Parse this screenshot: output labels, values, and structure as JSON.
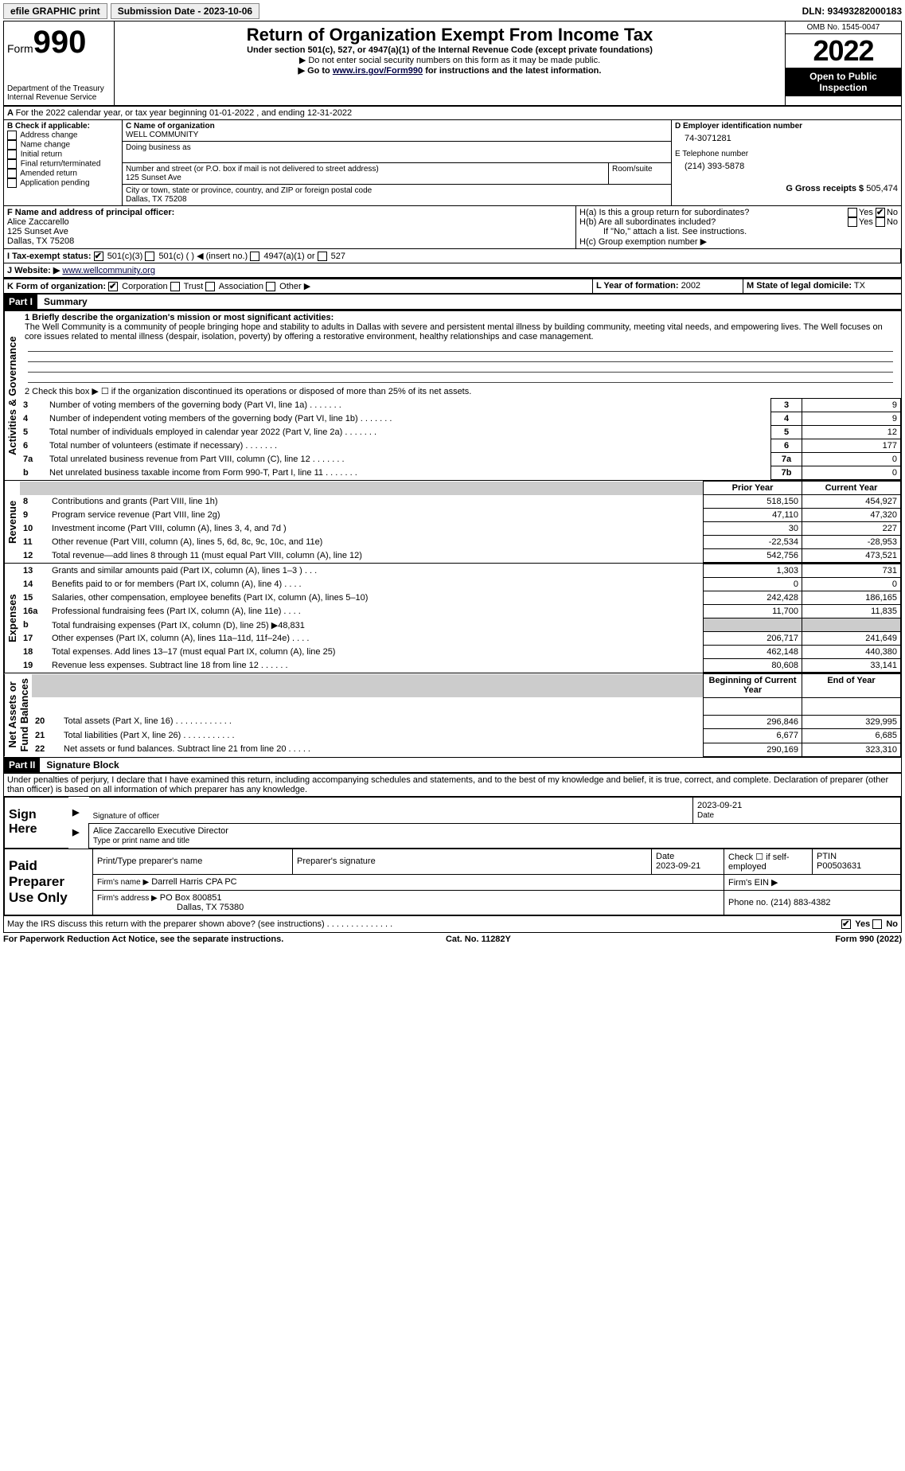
{
  "topbar": {
    "efile": "efile GRAPHIC print",
    "subdate_label": "Submission Date - 2023-10-06",
    "dln": "DLN: 93493282000183"
  },
  "header": {
    "form_word": "Form",
    "form_num": "990",
    "dept": "Department of the Treasury\nInternal Revenue Service",
    "title": "Return of Organization Exempt From Income Tax",
    "sub1": "Under section 501(c), 527, or 4947(a)(1) of the Internal Revenue Code (except private foundations)",
    "sub2": "▶ Do not enter social security numbers on this form as it may be made public.",
    "sub3_pre": "▶ Go to ",
    "sub3_link": "www.irs.gov/Form990",
    "sub3_post": " for instructions and the latest information.",
    "omb": "OMB No. 1545-0047",
    "year": "2022",
    "open": "Open to Public Inspection"
  },
  "lineA": "For the 2022 calendar year, or tax year beginning 01-01-2022    , and ending 12-31-2022",
  "blockB": {
    "label": "B Check if applicable:",
    "items": [
      "Address change",
      "Name change",
      "Initial return",
      "Final return/terminated",
      "Amended return",
      "Application pending"
    ]
  },
  "blockC": {
    "name_label": "C Name of organization",
    "name": "WELL COMMUNITY",
    "dba_label": "Doing business as",
    "street_label": "Number and street (or P.O. box if mail is not delivered to street address)",
    "room_label": "Room/suite",
    "street": "125 Sunset Ave",
    "city_label": "City or town, state or province, country, and ZIP or foreign postal code",
    "city": "Dallas, TX  75208"
  },
  "blockDE": {
    "d_label": "D Employer identification number",
    "ein": "74-3071281",
    "e_label": "E Telephone number",
    "phone": "(214) 393-5878",
    "g_label": "G Gross receipts $",
    "g_val": "505,474"
  },
  "blockF": {
    "label": "F  Name and address of principal officer:",
    "name": "Alice Zaccarello",
    "street": "125 Sunset Ave",
    "city": "Dallas, TX  75208"
  },
  "blockH": {
    "a": "H(a)  Is this a group return for subordinates?",
    "b": "H(b)  Are all subordinates included?",
    "b_note": "If \"No,\" attach a list. See instructions.",
    "c": "H(c)  Group exemption number ▶",
    "yes": "Yes",
    "no": "No"
  },
  "lineI": {
    "label": "I   Tax-exempt status:",
    "o1": "501(c)(3)",
    "o2": "501(c) (   ) ◀ (insert no.)",
    "o3": "4947(a)(1) or",
    "o4": "527"
  },
  "lineJ": {
    "label": "J   Website: ▶",
    "val": "www.wellcommunity.org"
  },
  "lineK": {
    "label": "K Form of organization:",
    "o1": "Corporation",
    "o2": "Trust",
    "o3": "Association",
    "o4": "Other ▶"
  },
  "lineL": {
    "label": "L Year of formation:",
    "val": "2002"
  },
  "lineM": {
    "label": "M State of legal domicile:",
    "val": "TX"
  },
  "part1": {
    "hdr": "Part I",
    "title": "Summary"
  },
  "summary": {
    "l1_label": "1  Briefly describe the organization's mission or most significant activities:",
    "l1_text": "The Well Community is a community of people bringing hope and stability to adults in Dallas with severe and persistent mental illness by building community, meeting vital needs, and empowering lives. The Well focuses on core issues related to mental illness (despair, isolation, poverty) by offering a restorative environment, healthy relationships and case management.",
    "l2": "2   Check this box ▶ ☐  if the organization discontinued its operations or disposed of more than 25% of its net assets.",
    "rows_ag": [
      {
        "n": "3",
        "t": "Number of voting members of the governing body (Part VI, line 1a)",
        "box": "3",
        "v": "9"
      },
      {
        "n": "4",
        "t": "Number of independent voting members of the governing body (Part VI, line 1b)",
        "box": "4",
        "v": "9"
      },
      {
        "n": "5",
        "t": "Total number of individuals employed in calendar year 2022 (Part V, line 2a)",
        "box": "5",
        "v": "12"
      },
      {
        "n": "6",
        "t": "Total number of volunteers (estimate if necessary)",
        "box": "6",
        "v": "177"
      },
      {
        "n": "7a",
        "t": "Total unrelated business revenue from Part VIII, column (C), line 12",
        "box": "7a",
        "v": "0"
      },
      {
        "n": "b",
        "t": "Net unrelated business taxable income from Form 990-T, Part I, line 11",
        "box": "7b",
        "v": "0"
      }
    ],
    "prior": "Prior Year",
    "current": "Current Year",
    "revenue": [
      {
        "n": "8",
        "t": "Contributions and grants (Part VIII, line 1h)",
        "p": "518,150",
        "c": "454,927"
      },
      {
        "n": "9",
        "t": "Program service revenue (Part VIII, line 2g)",
        "p": "47,110",
        "c": "47,320"
      },
      {
        "n": "10",
        "t": "Investment income (Part VIII, column (A), lines 3, 4, and 7d )",
        "p": "30",
        "c": "227"
      },
      {
        "n": "11",
        "t": "Other revenue (Part VIII, column (A), lines 5, 6d, 8c, 9c, 10c, and 11e)",
        "p": "-22,534",
        "c": "-28,953"
      },
      {
        "n": "12",
        "t": "Total revenue—add lines 8 through 11 (must equal Part VIII, column (A), line 12)",
        "p": "542,756",
        "c": "473,521"
      }
    ],
    "expenses": [
      {
        "n": "13",
        "t": "Grants and similar amounts paid (Part IX, column (A), lines 1–3 )   .   .   .",
        "p": "1,303",
        "c": "731"
      },
      {
        "n": "14",
        "t": "Benefits paid to or for members (Part IX, column (A), line 4)  .   .   .   .",
        "p": "0",
        "c": "0"
      },
      {
        "n": "15",
        "t": "Salaries, other compensation, employee benefits (Part IX, column (A), lines 5–10)",
        "p": "242,428",
        "c": "186,165"
      },
      {
        "n": "16a",
        "t": "Professional fundraising fees (Part IX, column (A), line 11e)  .   .   .   .",
        "p": "11,700",
        "c": "11,835"
      },
      {
        "n": "b",
        "t": "Total fundraising expenses (Part IX, column (D), line 25) ▶48,831",
        "p": "",
        "c": "",
        "shade": true
      },
      {
        "n": "17",
        "t": "Other expenses (Part IX, column (A), lines 11a–11d, 11f–24e)  .   .   .   .",
        "p": "206,717",
        "c": "241,649"
      },
      {
        "n": "18",
        "t": "Total expenses. Add lines 13–17 (must equal Part IX, column (A), line 25)",
        "p": "462,148",
        "c": "440,380"
      },
      {
        "n": "19",
        "t": "Revenue less expenses. Subtract line 18 from line 12  .   .   .   .   .   .",
        "p": "80,608",
        "c": "33,141"
      }
    ],
    "boy": "Beginning of Current Year",
    "eoy": "End of Year",
    "netassets": [
      {
        "n": "20",
        "t": "Total assets (Part X, line 16)  .   .   .   .   .   .   .   .   .   .   .   .",
        "p": "296,846",
        "c": "329,995"
      },
      {
        "n": "21",
        "t": "Total liabilities (Part X, line 26)  .   .   .   .   .   .   .   .   .   .   .",
        "p": "6,677",
        "c": "6,685"
      },
      {
        "n": "22",
        "t": "Net assets or fund balances. Subtract line 21 from line 20  .   .   .   .   .",
        "p": "290,169",
        "c": "323,310"
      }
    ],
    "vtabs": {
      "ag": "Activities & Governance",
      "rev": "Revenue",
      "exp": "Expenses",
      "na": "Net Assets or\nFund Balances"
    }
  },
  "part2": {
    "hdr": "Part II",
    "title": "Signature Block",
    "decl": "Under penalties of perjury, I declare that I have examined this return, including accompanying schedules and statements, and to the best of my knowledge and belief, it is true, correct, and complete. Declaration of preparer (other than officer) is based on all information of which preparer has any knowledge."
  },
  "sign": {
    "here": "Sign Here",
    "sig_officer": "Signature of officer",
    "date": "2023-09-21",
    "name_title": "Alice Zaccarello  Executive Director",
    "type_name": "Type or print name and title"
  },
  "paid": {
    "label": "Paid Preparer Use Only",
    "h1": "Print/Type preparer's name",
    "h2": "Preparer's signature",
    "h3": "Date",
    "h4": "Check ☐ if self-employed",
    "h5": "PTIN",
    "date": "2023-09-21",
    "ptin": "P00503631",
    "firm_name_l": "Firm's name    ▶",
    "firm_name": "Darrell Harris CPA PC",
    "firm_ein_l": "Firm's EIN ▶",
    "firm_addr_l": "Firm's address ▶",
    "firm_addr": "PO Box 800851",
    "firm_city": "Dallas, TX  75380",
    "phone_l": "Phone no.",
    "phone": "(214) 883-4382",
    "may": "May the IRS discuss this return with the preparer shown above? (see instructions)   .   .   .   .   .   .   .   .   .   .   .   .   .   .",
    "yes": "Yes",
    "no": "No"
  },
  "footer": {
    "l": "For Paperwork Reduction Act Notice, see the separate instructions.",
    "m": "Cat. No. 11282Y",
    "r": "Form 990 (2022)"
  }
}
